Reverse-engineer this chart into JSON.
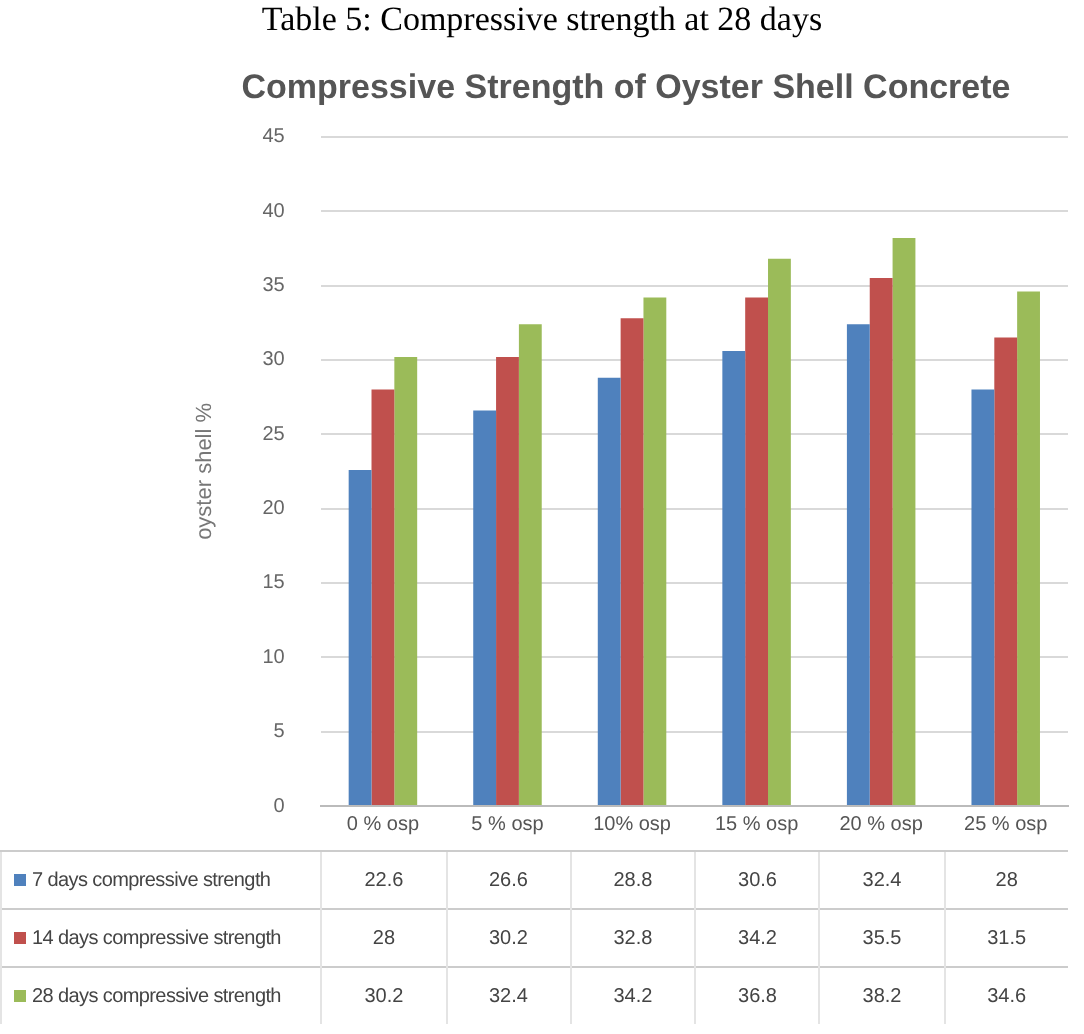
{
  "chart_data": {
    "type": "bar",
    "title": "Compressive Strength of Oyster Shell Concrete",
    "ylabel": "oyster shell %",
    "annotations": [
      "Table 5: Compressive strength at 28 days"
    ],
    "categories": [
      "0 % osp",
      "5 % osp",
      "10% osp",
      "15 % osp",
      "20 % osp",
      "25 % osp"
    ],
    "series": [
      {
        "name": "7 days compressive strength",
        "color": "#4f81bd",
        "values": [
          22.6,
          26.6,
          28.8,
          30.6,
          32.4,
          28
        ]
      },
      {
        "name": "14 days compressive strength",
        "color": "#c0504d",
        "values": [
          28,
          30.2,
          32.8,
          34.2,
          35.5,
          31.5
        ]
      },
      {
        "name": "28 days compressive strength",
        "color": "#9bbb59",
        "values": [
          30.2,
          32.4,
          34.2,
          36.8,
          38.2,
          34.6
        ]
      }
    ],
    "ylim": [
      0,
      45
    ],
    "yticks": [
      0,
      5,
      10,
      15,
      20,
      25,
      30,
      35,
      40,
      45
    ],
    "grid": "y",
    "legend": "bottom",
    "data_labels": true
  }
}
